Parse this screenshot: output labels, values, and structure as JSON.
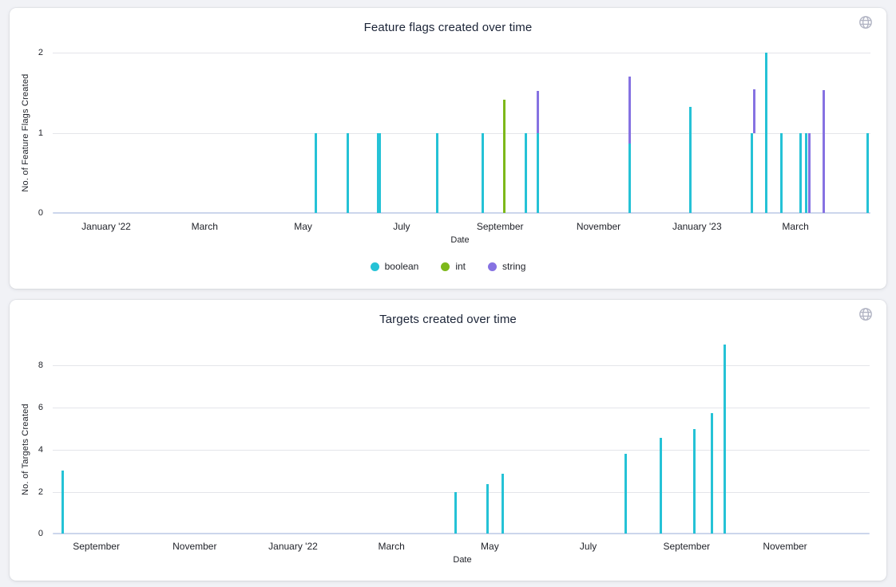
{
  "page": {
    "background": "#f1f2f6"
  },
  "icons": {
    "top_right": "globe-icon",
    "color": "#b2b5c4"
  },
  "chart_data": [
    {
      "type": "bar",
      "title": "Feature flags created over time",
      "xlabel": "Date",
      "ylabel": "No. of Feature Flags Created",
      "ylim": [
        0,
        2
      ],
      "yticks": [
        0,
        1,
        2
      ],
      "grid": true,
      "legend": {
        "visible": true,
        "position": "bottom"
      },
      "xticks": [
        {
          "label": "January '22",
          "m": 0
        },
        {
          "label": "March",
          "m": 2
        },
        {
          "label": "May",
          "m": 4
        },
        {
          "label": "July",
          "m": 6
        },
        {
          "label": "September",
          "m": 8
        },
        {
          "label": "November",
          "m": 10
        },
        {
          "label": "January '23",
          "m": 12
        },
        {
          "label": "March",
          "m": 14
        }
      ],
      "series": [
        {
          "name": "boolean",
          "color": "#25c2d6"
        },
        {
          "name": "int",
          "color": "#7db81a"
        },
        {
          "name": "string",
          "color": "#8672e2"
        }
      ],
      "bars": [
        {
          "date": "2022-05-08",
          "m": 4.25,
          "segments": [
            {
              "series": "boolean",
              "from": 0,
              "to": 1
            }
          ]
        },
        {
          "date": "2022-05-28",
          "m": 4.9,
          "segments": [
            {
              "series": "boolean",
              "from": 0,
              "to": 1
            }
          ]
        },
        {
          "date": "2022-06-17",
          "m": 5.54,
          "w": 5,
          "segments": [
            {
              "series": "boolean",
              "from": 0,
              "to": 1
            }
          ]
        },
        {
          "date": "2022-07-23",
          "m": 6.73,
          "segments": [
            {
              "series": "boolean",
              "from": 0,
              "to": 1
            }
          ]
        },
        {
          "date": "2022-08-20",
          "m": 7.64,
          "segments": [
            {
              "series": "boolean",
              "from": 0,
              "to": 1
            }
          ]
        },
        {
          "date": "2022-09-03",
          "m": 8.09,
          "segments": [
            {
              "series": "int",
              "from": 0,
              "to": 1.42
            }
          ]
        },
        {
          "date": "2022-09-16",
          "m": 8.52,
          "segments": [
            {
              "series": "boolean",
              "from": 0,
              "to": 1
            }
          ]
        },
        {
          "date": "2022-09-24",
          "m": 8.77,
          "segments": [
            {
              "series": "boolean",
              "from": 0,
              "to": 1
            },
            {
              "series": "string",
              "from": 1,
              "to": 1.53
            }
          ]
        },
        {
          "date": "2022-11-20",
          "m": 10.64,
          "segments": [
            {
              "series": "boolean",
              "from": 0,
              "to": 0.87
            },
            {
              "series": "string",
              "from": 0.87,
              "to": 1.7
            }
          ]
        },
        {
          "date": "2022-12-27",
          "m": 11.86,
          "segments": [
            {
              "series": "boolean",
              "from": 0,
              "to": 1.33
            }
          ]
        },
        {
          "date": "2023-02-05",
          "m": 13.12,
          "segments": [
            {
              "series": "boolean",
              "from": 0,
              "to": 1
            }
          ]
        },
        {
          "date": "2023-02-06",
          "m": 13.17,
          "segments": [
            {
              "series": "string",
              "from": 1,
              "to": 1.55
            }
          ]
        },
        {
          "date": "2023-02-13",
          "m": 13.41,
          "segments": [
            {
              "series": "boolean",
              "from": 0,
              "to": 2
            }
          ]
        },
        {
          "date": "2023-02-22",
          "m": 13.71,
          "segments": [
            {
              "series": "boolean",
              "from": 0,
              "to": 1
            }
          ]
        },
        {
          "date": "2023-03-04",
          "m": 14.11,
          "segments": [
            {
              "series": "boolean",
              "from": 0,
              "to": 1
            }
          ]
        },
        {
          "date": "2023-03-08",
          "m": 14.22,
          "segments": [
            {
              "series": "boolean",
              "from": 0,
              "to": 1
            }
          ]
        },
        {
          "date": "2023-03-09",
          "m": 14.28,
          "segments": [
            {
              "series": "string",
              "from": 0,
              "to": 1
            }
          ]
        },
        {
          "date": "2023-03-18",
          "m": 14.57,
          "segments": [
            {
              "series": "string",
              "from": 0,
              "to": 1.54
            }
          ]
        },
        {
          "date": "2023-04-15",
          "m": 15.47,
          "segments": [
            {
              "series": "boolean",
              "from": 0,
              "to": 1
            }
          ]
        }
      ]
    },
    {
      "type": "bar",
      "title": "Targets created over time",
      "xlabel": "Date",
      "ylabel": "No. of Targets Created",
      "ylim": [
        0,
        9.2
      ],
      "yticks": [
        0,
        2,
        4,
        6,
        8
      ],
      "grid": true,
      "legend": {
        "visible": false
      },
      "xticks": [
        {
          "label": "September",
          "m": -4
        },
        {
          "label": "November",
          "m": -2
        },
        {
          "label": "January '22",
          "m": 0
        },
        {
          "label": "March",
          "m": 2
        },
        {
          "label": "May",
          "m": 4
        },
        {
          "label": "July",
          "m": 6
        },
        {
          "label": "September",
          "m": 8
        },
        {
          "label": "November",
          "m": 10
        }
      ],
      "series": [
        {
          "name": "targets",
          "color": "#25c2d6"
        }
      ],
      "bars": [
        {
          "date": "2021-08-10",
          "m": -4.69,
          "segments": [
            {
              "series": "targets",
              "from": 0,
              "to": 3.0
            }
          ]
        },
        {
          "date": "2022-04-10",
          "m": 3.31,
          "segments": [
            {
              "series": "targets",
              "from": 0,
              "to": 2.0
            }
          ]
        },
        {
          "date": "2022-04-30",
          "m": 3.96,
          "segments": [
            {
              "series": "targets",
              "from": 0,
              "to": 2.35
            }
          ]
        },
        {
          "date": "2022-05-09",
          "m": 4.26,
          "segments": [
            {
              "series": "targets",
              "from": 0,
              "to": 2.84
            }
          ]
        },
        {
          "date": "2022-07-24",
          "m": 6.76,
          "segments": [
            {
              "series": "targets",
              "from": 0,
              "to": 3.82
            }
          ]
        },
        {
          "date": "2022-08-15",
          "m": 7.48,
          "segments": [
            {
              "series": "targets",
              "from": 0,
              "to": 4.55
            }
          ]
        },
        {
          "date": "2022-09-05",
          "m": 8.15,
          "segments": [
            {
              "series": "targets",
              "from": 0,
              "to": 4.96
            }
          ]
        },
        {
          "date": "2022-09-16",
          "m": 8.52,
          "segments": [
            {
              "series": "targets",
              "from": 0,
              "to": 5.74
            }
          ]
        },
        {
          "date": "2022-09-24",
          "m": 8.78,
          "segments": [
            {
              "series": "targets",
              "from": 0,
              "to": 9.0
            }
          ]
        }
      ]
    }
  ]
}
